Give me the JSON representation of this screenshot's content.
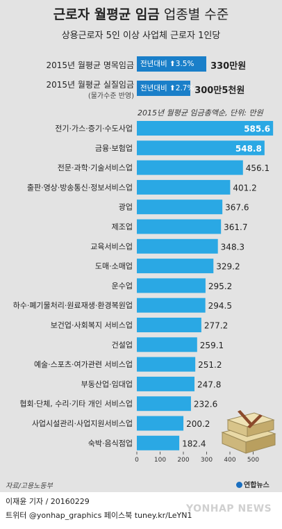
{
  "header": {
    "title_bold": "근로자 월평균 임금",
    "title_light": "업종별 수준",
    "subtitle": "상용근로자 5인 이상 사업체 근로자 1인당"
  },
  "summary": [
    {
      "label": "2015년 월평균 명목임금",
      "sublabel": "",
      "box_text": "전년대비 ⬆3.5%",
      "change_pct": 3.5,
      "value_text": "330만원"
    },
    {
      "label": "2015년 월평균 실질임금",
      "sublabel": "(물가수준 반영)",
      "box_text": "전년대비 ⬆2.7%",
      "change_pct": 2.7,
      "value_text": "300만5천원"
    }
  ],
  "chart_note": "2015년 월평균 임금총액순, 단위: 만원",
  "chart_data": {
    "type": "bar",
    "orientation": "horizontal",
    "categories": [
      "전기·가스·증기·수도사업",
      "금융·보험업",
      "전문·과학·기술서비스업",
      "출판·영상·방송통신·정보서비스업",
      "광업",
      "제조업",
      "교육서비스업",
      "도매·소매업",
      "운수업",
      "하수·폐기물처리·원료재생·환경복원업",
      "보건업·사회복지 서비스업",
      "건설업",
      "예술·스포츠·여가관련 서비스업",
      "부동산업·임대업",
      "협회·단체, 수리·기타 개인 서비스업",
      "사업시설관리·사업지원서비스업",
      "숙박·음식점업"
    ],
    "values": [
      585.6,
      548.8,
      456.1,
      401.2,
      367.6,
      361.7,
      348.3,
      329.2,
      295.2,
      294.5,
      277.2,
      259.1,
      251.2,
      247.8,
      232.6,
      200.2,
      182.4
    ],
    "value_labels": [
      "585.6",
      "548.8",
      "456.1",
      "401.2",
      "367.6",
      "361.7",
      "348.3",
      "329.2",
      "295.2",
      "294.5",
      "277.2",
      "259.1",
      "251.2",
      "247.8",
      "232.6",
      "200.2",
      "182.4"
    ],
    "xlim": [
      0,
      600
    ],
    "xticks": [
      0,
      100,
      200,
      300,
      400,
      500
    ],
    "xtick_labels": [
      "0",
      "100",
      "200",
      "300",
      "400",
      "500"
    ],
    "unit": "만원",
    "bar_color": "#2aa8e4",
    "grid": false
  },
  "footer": {
    "source": "자료/고용노동부",
    "logo_text": "연합뉴스",
    "reporter": "이재윤 기자 / 20160229",
    "social": "트위터 @yonhap_graphics  페이스북 tuney.kr/LeYN1",
    "watermark": "YONHAP NEWS"
  },
  "colors": {
    "background": "#e3e3e3",
    "summary_box": "#1a7fc9",
    "bar": "#2aa8e4"
  }
}
